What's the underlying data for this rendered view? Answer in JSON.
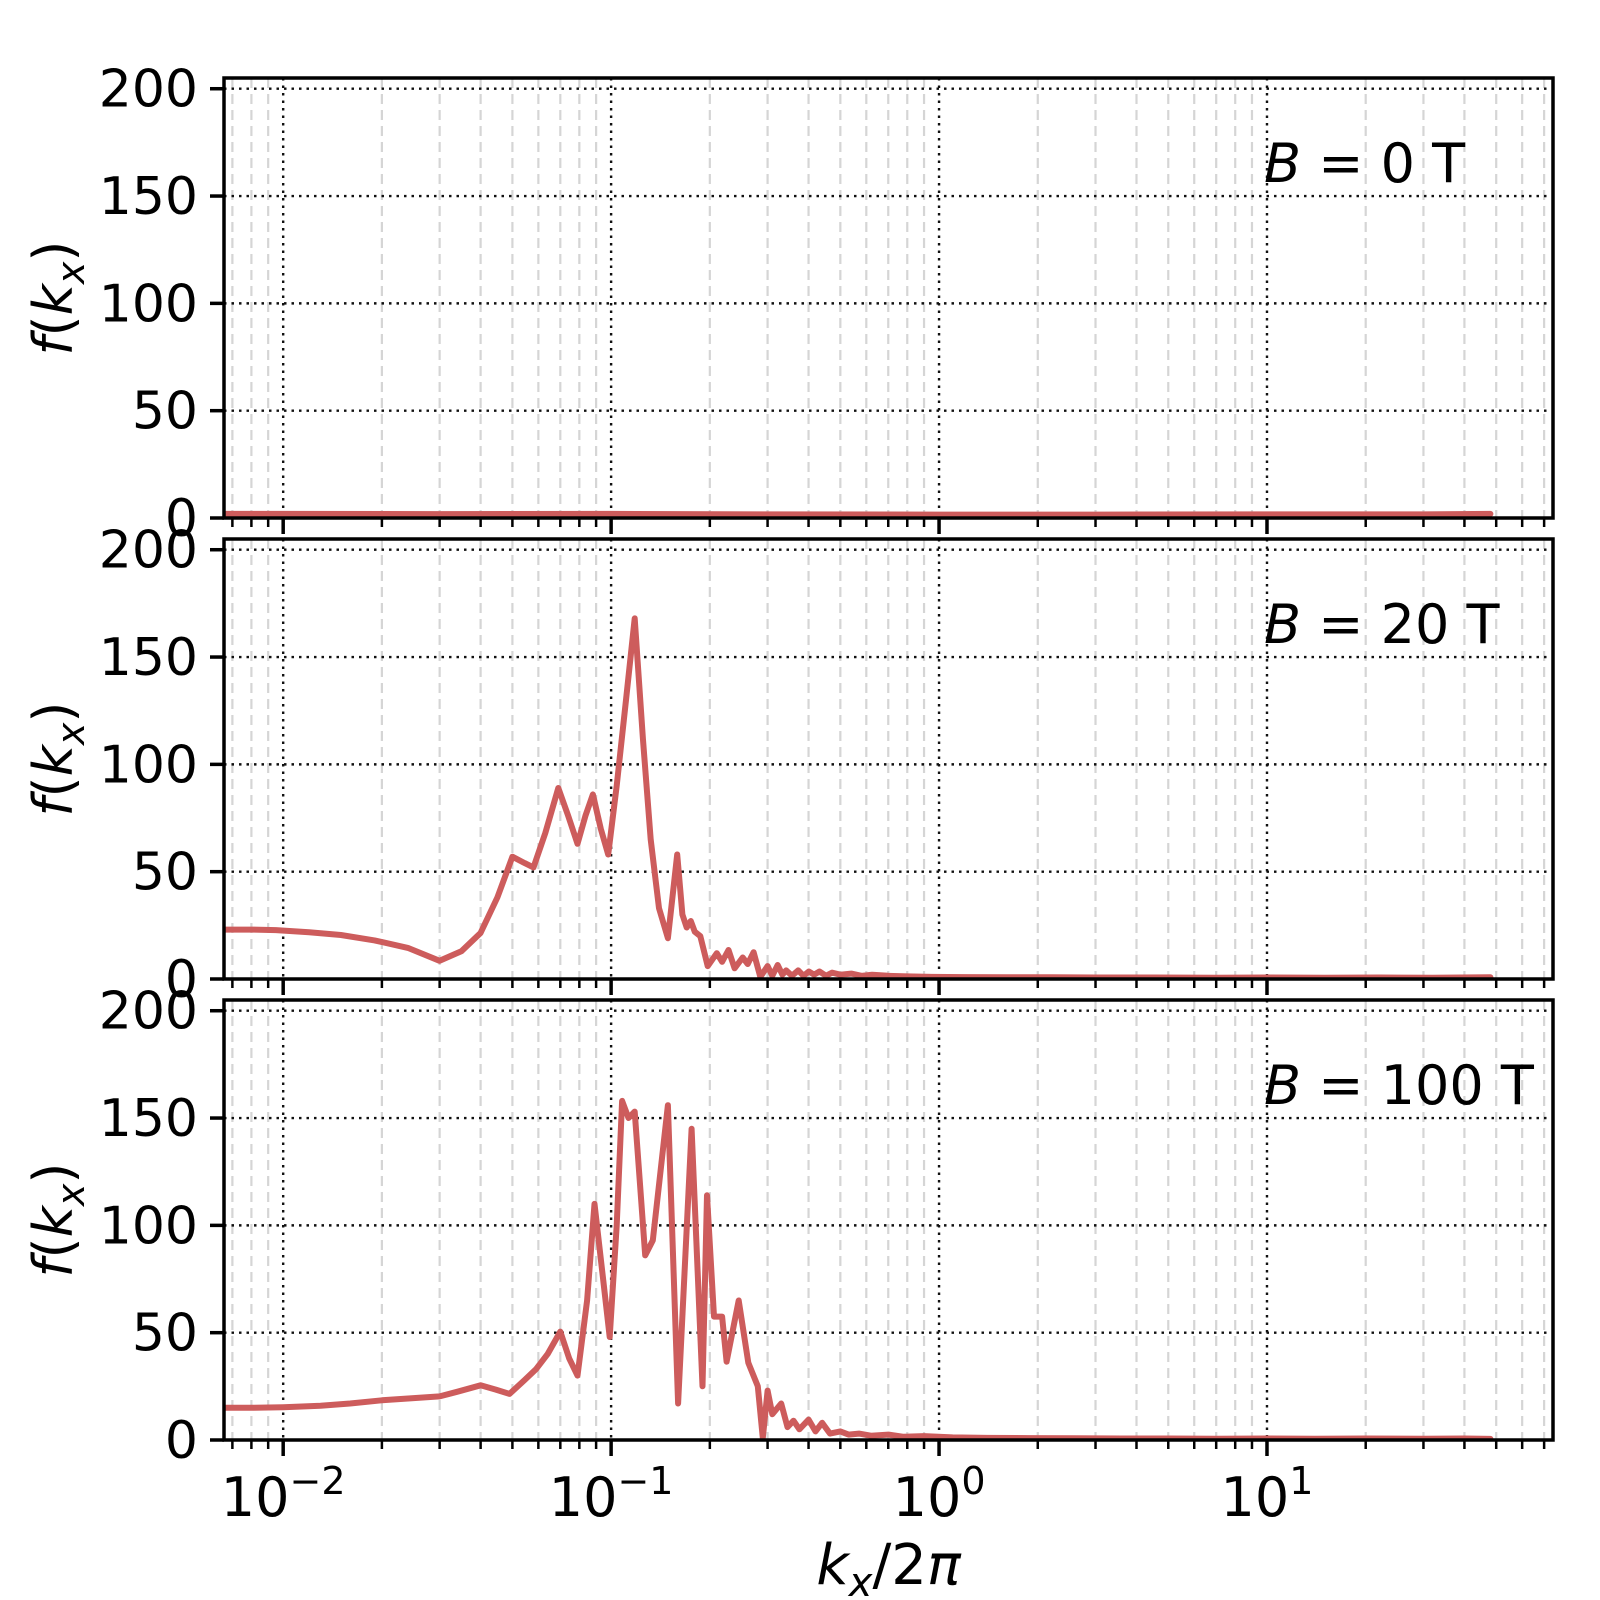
{
  "figure": {
    "background": "#ffffff"
  },
  "chart_data": {
    "type": "line",
    "title": "",
    "xlabel": "k_x/2π",
    "ylabel": "f(k_x)",
    "xscale": "log",
    "xlim": [
      0.0066,
      74.5
    ],
    "ylim": [
      0,
      205
    ],
    "yticks": [
      0,
      50,
      100,
      150,
      200
    ],
    "xticks": [
      {
        "text": "10",
        "exp": "−2",
        "value": 0.01
      },
      {
        "text": "10",
        "exp": "−1",
        "value": 0.1
      },
      {
        "text": "10",
        "exp": "0",
        "value": 1
      },
      {
        "text": "10",
        "exp": "1",
        "value": 10
      }
    ],
    "grid": {
      "major_color": "#111111",
      "minor_color": "#d5d5d5",
      "major_on": true,
      "minor_on": true
    },
    "legend_position": "none",
    "line_color": "#CD5C5C",
    "xlabel_parts": {
      "var": "k",
      "sub": "x",
      "rest": "/2",
      "pi": "π"
    },
    "ylabel_parts": {
      "f": "f",
      "open": "(",
      "k": "k",
      "sub": "x",
      "close": ")"
    },
    "panels": [
      {
        "label_var": "B",
        "label_rest": " = 0 T",
        "points": [
          [
            0.0066,
            1.9
          ],
          [
            0.01,
            1.9
          ],
          [
            0.03,
            1.8
          ],
          [
            0.1,
            1.9
          ],
          [
            0.3,
            1.7
          ],
          [
            1.0,
            1.6
          ],
          [
            3.0,
            1.6
          ],
          [
            10,
            1.7
          ],
          [
            30,
            1.7
          ],
          [
            48,
            1.9
          ]
        ]
      },
      {
        "label_var": "B",
        "label_rest": " = 20 T",
        "points": [
          [
            0.0066,
            23
          ],
          [
            0.008,
            23
          ],
          [
            0.0095,
            22.8
          ],
          [
            0.012,
            21.8
          ],
          [
            0.015,
            20.5
          ],
          [
            0.019,
            18
          ],
          [
            0.024,
            14.5
          ],
          [
            0.03,
            8.5
          ],
          [
            0.035,
            13
          ],
          [
            0.04,
            21.5
          ],
          [
            0.045,
            38
          ],
          [
            0.05,
            57
          ],
          [
            0.0545,
            54
          ],
          [
            0.058,
            52
          ],
          [
            0.063,
            68
          ],
          [
            0.069,
            89
          ],
          [
            0.074,
            76
          ],
          [
            0.079,
            63
          ],
          [
            0.0835,
            76
          ],
          [
            0.088,
            86
          ],
          [
            0.093,
            70
          ],
          [
            0.098,
            58
          ],
          [
            0.104,
            90
          ],
          [
            0.111,
            130
          ],
          [
            0.118,
            168
          ],
          [
            0.125,
            112
          ],
          [
            0.132,
            65
          ],
          [
            0.14,
            33
          ],
          [
            0.149,
            19
          ],
          [
            0.159,
            58
          ],
          [
            0.165,
            30
          ],
          [
            0.17,
            24
          ],
          [
            0.175,
            27
          ],
          [
            0.18,
            22
          ],
          [
            0.187,
            20
          ],
          [
            0.197,
            6
          ],
          [
            0.21,
            12
          ],
          [
            0.218,
            8
          ],
          [
            0.228,
            13.5
          ],
          [
            0.238,
            5
          ],
          [
            0.252,
            10
          ],
          [
            0.261,
            7
          ],
          [
            0.272,
            12.5
          ],
          [
            0.285,
            1
          ],
          [
            0.3,
            6
          ],
          [
            0.31,
            1.5
          ],
          [
            0.322,
            6.5
          ],
          [
            0.333,
            2
          ],
          [
            0.342,
            4
          ],
          [
            0.356,
            1.5
          ],
          [
            0.372,
            4
          ],
          [
            0.386,
            1.5
          ],
          [
            0.401,
            3.5
          ],
          [
            0.416,
            2
          ],
          [
            0.432,
            3.5
          ],
          [
            0.452,
            1.5
          ],
          [
            0.472,
            3
          ],
          [
            0.5,
            2
          ],
          [
            0.54,
            2.5
          ],
          [
            0.58,
            1.5
          ],
          [
            0.625,
            2
          ],
          [
            0.7,
            1.5
          ],
          [
            0.8,
            1.2
          ],
          [
            0.95,
            1.0
          ],
          [
            1.2,
            0.9
          ],
          [
            1.6,
            0.8
          ],
          [
            2.2,
            0.8
          ],
          [
            3.0,
            0.7
          ],
          [
            4.5,
            0.7
          ],
          [
            7.0,
            0.6
          ],
          [
            10,
            0.7
          ],
          [
            15,
            0.6
          ],
          [
            22,
            0.7
          ],
          [
            32,
            0.6
          ],
          [
            48,
            0.8
          ]
        ]
      },
      {
        "label_var": "B",
        "label_rest": " = 100 T",
        "points": [
          [
            0.0066,
            15
          ],
          [
            0.008,
            15
          ],
          [
            0.01,
            15.3
          ],
          [
            0.013,
            16
          ],
          [
            0.016,
            17
          ],
          [
            0.02,
            18.5
          ],
          [
            0.025,
            19.5
          ],
          [
            0.03,
            20.3
          ],
          [
            0.034,
            22.5
          ],
          [
            0.04,
            25.5
          ],
          [
            0.0445,
            23.5
          ],
          [
            0.049,
            21.5
          ],
          [
            0.0545,
            28
          ],
          [
            0.059,
            33
          ],
          [
            0.064,
            40
          ],
          [
            0.07,
            50.5
          ],
          [
            0.0745,
            38
          ],
          [
            0.079,
            30
          ],
          [
            0.0845,
            65
          ],
          [
            0.089,
            110
          ],
          [
            0.0945,
            75
          ],
          [
            0.099,
            48
          ],
          [
            0.104,
            100
          ],
          [
            0.108,
            158
          ],
          [
            0.113,
            150
          ],
          [
            0.118,
            153
          ],
          [
            0.127,
            86
          ],
          [
            0.134,
            93
          ],
          [
            0.149,
            156
          ],
          [
            0.16,
            17
          ],
          [
            0.176,
            145
          ],
          [
            0.19,
            25
          ],
          [
            0.196,
            114
          ],
          [
            0.206,
            57.5
          ],
          [
            0.218,
            57.5
          ],
          [
            0.225,
            36.5
          ],
          [
            0.245,
            65
          ],
          [
            0.262,
            36
          ],
          [
            0.28,
            25
          ],
          [
            0.29,
            1
          ],
          [
            0.3,
            23
          ],
          [
            0.31,
            12
          ],
          [
            0.33,
            17
          ],
          [
            0.345,
            6
          ],
          [
            0.36,
            9
          ],
          [
            0.375,
            5
          ],
          [
            0.4,
            9.5
          ],
          [
            0.42,
            4
          ],
          [
            0.44,
            8
          ],
          [
            0.465,
            3
          ],
          [
            0.5,
            4
          ],
          [
            0.53,
            2.5
          ],
          [
            0.57,
            3
          ],
          [
            0.62,
            2
          ],
          [
            0.7,
            2.5
          ],
          [
            0.78,
            1.5
          ],
          [
            0.9,
            1.8
          ],
          [
            1.1,
            1.2
          ],
          [
            1.4,
            1.0
          ],
          [
            1.9,
            0.9
          ],
          [
            2.6,
            0.8
          ],
          [
            3.6,
            0.7
          ],
          [
            5.0,
            0.7
          ],
          [
            7.0,
            0.6
          ],
          [
            10,
            0.7
          ],
          [
            14,
            0.6
          ],
          [
            20,
            0.7
          ],
          [
            30,
            0.6
          ],
          [
            40,
            0.7
          ],
          [
            48,
            0.5
          ]
        ]
      }
    ]
  }
}
